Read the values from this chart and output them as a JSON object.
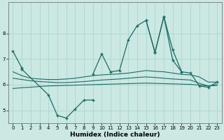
{
  "xlabel": "Humidex (Indice chaleur)",
  "bg_color": "#cbe8e3",
  "grid_color": "#b0d8d4",
  "line_color": "#1e6b65",
  "x_values": [
    0,
    1,
    2,
    3,
    4,
    5,
    6,
    7,
    8,
    9,
    10,
    11,
    12,
    13,
    14,
    15,
    16,
    17,
    18,
    19,
    20,
    21,
    22,
    23
  ],
  "series_top": [
    7.3,
    6.65,
    null,
    null,
    null,
    null,
    null,
    null,
    null,
    null,
    null,
    null,
    null,
    null,
    null,
    null,
    null,
    null,
    null,
    null,
    null,
    null,
    null,
    null
  ],
  "series_main": [
    null,
    null,
    null,
    null,
    null,
    null,
    null,
    null,
    null,
    6.4,
    7.2,
    6.5,
    6.55,
    7.75,
    8.3,
    8.5,
    7.25,
    8.65,
    6.95,
    6.5,
    null,
    null,
    null,
    null
  ],
  "series_right": [
    null,
    null,
    null,
    null,
    null,
    null,
    null,
    null,
    null,
    null,
    null,
    null,
    null,
    null,
    null,
    8.5,
    7.25,
    8.65,
    7.35,
    6.5,
    6.45,
    5.95,
    5.9,
    6.1
  ],
  "series_low": [
    null,
    6.6,
    null,
    null,
    5.6,
    4.8,
    4.7,
    5.05,
    5.4,
    5.4,
    null,
    null,
    null,
    null,
    null,
    null,
    null,
    null,
    null,
    null,
    null,
    null,
    null,
    null
  ],
  "series_smooth1": [
    6.5,
    6.35,
    6.25,
    6.22,
    6.2,
    6.2,
    6.22,
    6.25,
    6.3,
    6.35,
    6.38,
    6.4,
    6.42,
    6.45,
    6.5,
    6.55,
    6.52,
    6.5,
    6.45,
    6.4,
    6.38,
    6.3,
    6.1,
    6.1
  ],
  "series_smooth2": [
    6.25,
    6.2,
    6.15,
    6.12,
    6.1,
    6.08,
    6.08,
    6.1,
    6.12,
    6.15,
    6.18,
    6.2,
    6.22,
    6.25,
    6.28,
    6.3,
    6.28,
    6.25,
    6.22,
    6.2,
    6.18,
    6.05,
    5.95,
    5.97
  ],
  "series_flat": [
    5.85,
    5.88,
    5.9,
    5.93,
    5.95,
    5.96,
    5.97,
    5.98,
    5.99,
    6.0,
    6.01,
    6.02,
    6.03,
    6.04,
    6.05,
    6.06,
    6.05,
    6.04,
    6.03,
    6.02,
    6.01,
    5.98,
    5.95,
    6.0
  ],
  "ylim": [
    4.5,
    9.2
  ],
  "yticks": [
    5,
    6,
    7,
    8
  ],
  "xlim": [
    -0.5,
    23.5
  ]
}
